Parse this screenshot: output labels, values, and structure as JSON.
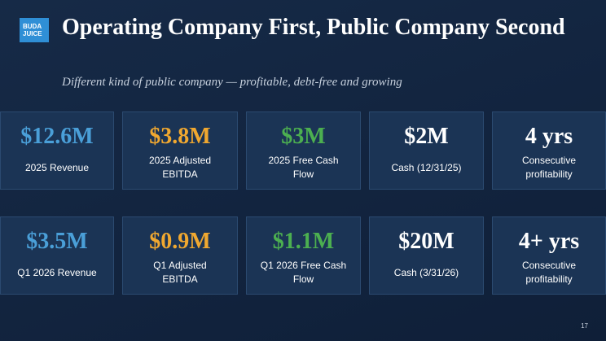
{
  "header": {
    "logo": [
      "BUDA",
      "JUICE"
    ],
    "title": "Operating Company First, Public Company Second",
    "subtitle": "Different kind of public company — profitable, debt-free and growing"
  },
  "rows": [
    [
      {
        "value": "$12.6M",
        "label": "2025 Revenue",
        "color": "#4a9fd8"
      },
      {
        "value": "$3.8M",
        "label": "2025 Adjusted EBITDA",
        "color": "#f0a830"
      },
      {
        "value": "$3M",
        "label": "2025 Free Cash Flow",
        "color": "#4caf50"
      },
      {
        "value": "$2M",
        "label": "Cash (12/31/25)",
        "color": "#ffffff"
      },
      {
        "value": "4 yrs",
        "label": "Consecutive profitability",
        "color": "#ffffff"
      }
    ],
    [
      {
        "value": "$3.5M",
        "label": "Q1 2026 Revenue",
        "color": "#4a9fd8"
      },
      {
        "value": "$0.9M",
        "label": "Q1 Adjusted EBITDA",
        "color": "#f0a830"
      },
      {
        "value": "$1.1M",
        "label": "Q1 2026 Free Cash Flow",
        "color": "#4caf50"
      },
      {
        "value": "$20M",
        "label": "Cash (3/31/26)",
        "color": "#ffffff"
      },
      {
        "value": "4+ yrs",
        "label": "Consecutive profitability",
        "color": "#ffffff"
      }
    ]
  ],
  "page_number": "17"
}
